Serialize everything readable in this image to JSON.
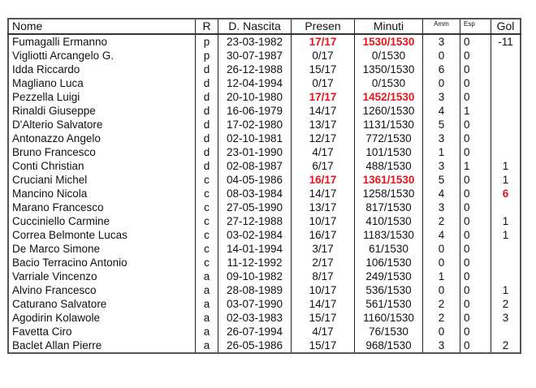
{
  "table": {
    "headers": [
      "Nome",
      "R",
      "D. Nascita",
      "Presen",
      "Minuti",
      "Amm",
      "Esp",
      "Gol"
    ],
    "highlight_color": "#e8141b",
    "rows": [
      {
        "nome": "Fumagalli Ermanno",
        "r": "p",
        "nascita": "23-03-1982",
        "presen": "17/17",
        "minuti": "1530/1530",
        "amm": "3",
        "esp": "0",
        "gol": "-11",
        "hl": [
          "presen",
          "minuti"
        ]
      },
      {
        "nome": "Vigliotti Arcangelo G.",
        "r": "p",
        "nascita": "30-07-1987",
        "presen": "0/17",
        "minuti": "0/1530",
        "amm": "0",
        "esp": "0",
        "gol": ""
      },
      {
        "nome": "Idda Riccardo",
        "r": "d",
        "nascita": "26-12-1988",
        "presen": "15/17",
        "minuti": "1350/1530",
        "amm": "6",
        "esp": "0",
        "gol": ""
      },
      {
        "nome": "Magliano Luca",
        "r": "d",
        "nascita": "12-04-1994",
        "presen": "0/17",
        "minuti": "0/1530",
        "amm": "0",
        "esp": "0",
        "gol": ""
      },
      {
        "nome": "Pezzella Luigi",
        "r": "d",
        "nascita": "20-10-1980",
        "presen": "17/17",
        "minuti": "1452/1530",
        "amm": "3",
        "esp": "0",
        "gol": "",
        "hl": [
          "presen",
          "minuti"
        ]
      },
      {
        "nome": "Rinaldi Giuseppe",
        "r": "d",
        "nascita": "16-06-1979",
        "presen": "14/17",
        "minuti": "1260/1530",
        "amm": "4",
        "esp": "1",
        "gol": ""
      },
      {
        "nome": "D'Alterio Salvatore",
        "r": "d",
        "nascita": "17-02-1980",
        "presen": "13/17",
        "minuti": "1131/1530",
        "amm": "5",
        "esp": "0",
        "gol": ""
      },
      {
        "nome": "Antonazzo Angelo",
        "r": "d",
        "nascita": "02-10-1981",
        "presen": "12/17",
        "minuti": "772/1530",
        "amm": "3",
        "esp": "0",
        "gol": ""
      },
      {
        "nome": "Bruno Francesco",
        "r": "d",
        "nascita": "23-01-1990",
        "presen": "4/17",
        "minuti": "101/1530",
        "amm": "1",
        "esp": "0",
        "gol": ""
      },
      {
        "nome": "Conti Christian",
        "r": "d",
        "nascita": "02-08-1987",
        "presen": "6/17",
        "minuti": "488/1530",
        "amm": "3",
        "esp": "1",
        "gol": "1"
      },
      {
        "nome": "Cruciani Michel",
        "r": "c",
        "nascita": "04-05-1986",
        "presen": "16/17",
        "minuti": "1361/1530",
        "amm": "5",
        "esp": "0",
        "gol": "1",
        "hl": [
          "presen",
          "minuti"
        ]
      },
      {
        "nome": "Mancino Nicola",
        "r": "c",
        "nascita": "08-03-1984",
        "presen": "14/17",
        "minuti": "1258/1530",
        "amm": "4",
        "esp": "0",
        "gol": "6",
        "hl": [
          "gol"
        ]
      },
      {
        "nome": "Marano Francesco",
        "r": "c",
        "nascita": "27-05-1990",
        "presen": "13/17",
        "minuti": "817/1530",
        "amm": "3",
        "esp": "0",
        "gol": ""
      },
      {
        "nome": "Cucciniello Carmine",
        "r": "c",
        "nascita": "27-12-1988",
        "presen": "10/17",
        "minuti": "410/1530",
        "amm": "2",
        "esp": "0",
        "gol": "1"
      },
      {
        "nome": "Correa Belmonte Lucas",
        "r": "c",
        "nascita": "03-02-1984",
        "presen": "16/17",
        "minuti": "1183/1530",
        "amm": "4",
        "esp": "0",
        "gol": "1"
      },
      {
        "nome": "De Marco Simone",
        "r": "c",
        "nascita": "14-01-1994",
        "presen": "3/17",
        "minuti": "61/1530",
        "amm": "0",
        "esp": "0",
        "gol": ""
      },
      {
        "nome": "Bacio Terracino Antonio",
        "r": "c",
        "nascita": "11-12-1992",
        "presen": "2/17",
        "minuti": "106/1530",
        "amm": "0",
        "esp": "0",
        "gol": ""
      },
      {
        "nome": "Varriale Vincenzo",
        "r": "a",
        "nascita": "09-10-1982",
        "presen": "8/17",
        "minuti": "249/1530",
        "amm": "1",
        "esp": "0",
        "gol": ""
      },
      {
        "nome": "Alvino Francesco",
        "r": "a",
        "nascita": "28-08-1989",
        "presen": "10/17",
        "minuti": "536/1530",
        "amm": "0",
        "esp": "0",
        "gol": "1"
      },
      {
        "nome": "Caturano Salvatore",
        "r": "a",
        "nascita": "03-07-1990",
        "presen": "14/17",
        "minuti": "561/1530",
        "amm": "2",
        "esp": "0",
        "gol": "2"
      },
      {
        "nome": "Agodirin Kolawole",
        "r": "a",
        "nascita": "02-03-1983",
        "presen": "15/17",
        "minuti": "1160/1530",
        "amm": "2",
        "esp": "0",
        "gol": "3"
      },
      {
        "nome": "Favetta Ciro",
        "r": "a",
        "nascita": "26-07-1994",
        "presen": "4/17",
        "minuti": "76/1530",
        "amm": "0",
        "esp": "0",
        "gol": ""
      },
      {
        "nome": "Baclet Allan Pierre",
        "r": "a",
        "nascita": "26-05-1986",
        "presen": "15/17",
        "minuti": "968/1530",
        "amm": "3",
        "esp": "0",
        "gol": "2"
      }
    ]
  }
}
